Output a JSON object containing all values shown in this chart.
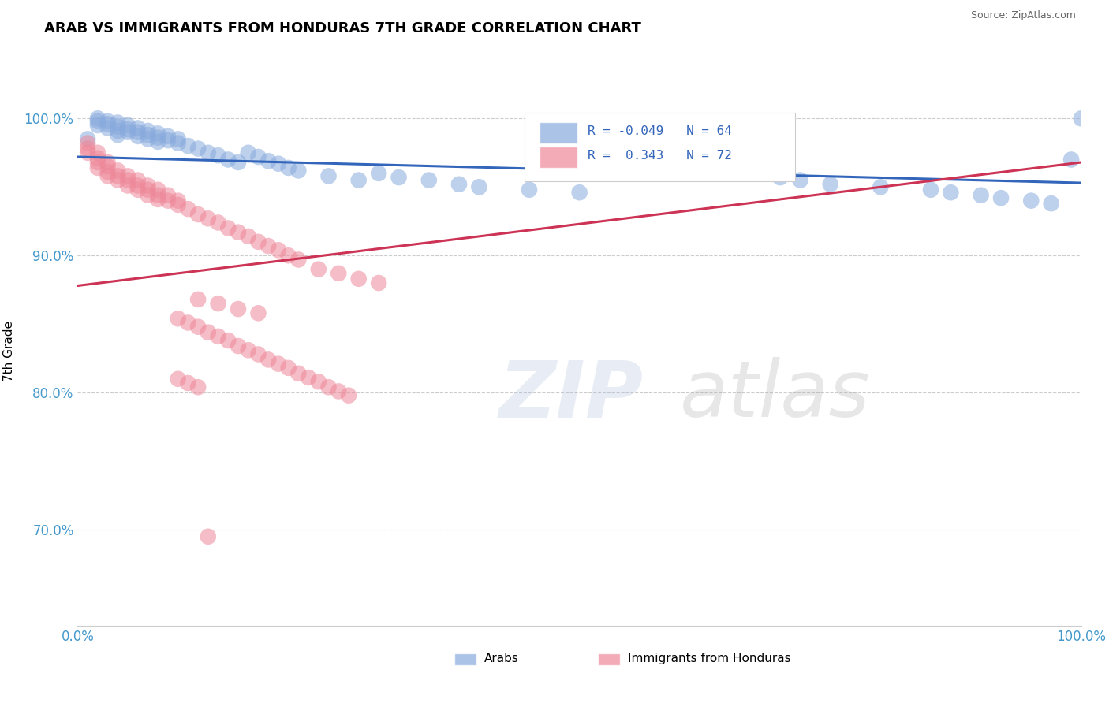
{
  "title": "ARAB VS IMMIGRANTS FROM HONDURAS 7TH GRADE CORRELATION CHART",
  "source": "Source: ZipAtlas.com",
  "ylabel": "7th Grade",
  "xlim": [
    0.0,
    1.0
  ],
  "ylim": [
    0.63,
    1.03
  ],
  "yticks": [
    0.7,
    0.8,
    0.9,
    1.0
  ],
  "ytick_labels": [
    "70.0%",
    "80.0%",
    "90.0%",
    "100.0%"
  ],
  "xticks": [
    0.0,
    0.25,
    0.5,
    0.75,
    1.0
  ],
  "xtick_labels": [
    "0.0%",
    "",
    "",
    "",
    "100.0%"
  ],
  "legend_R_blue": "-0.049",
  "legend_N_blue": "64",
  "legend_R_pink": "0.343",
  "legend_N_pink": "72",
  "blue_color": "#88AADD",
  "pink_color": "#EE8899",
  "line_blue_color": "#3366BB",
  "line_pink_color": "#CC3355",
  "blue_line_start_y": 0.972,
  "blue_line_end_y": 0.953,
  "pink_line_start_y": 0.878,
  "pink_line_end_y": 0.968,
  "blue_scatter_x": [
    0.01,
    0.02,
    0.02,
    0.02,
    0.03,
    0.03,
    0.03,
    0.04,
    0.04,
    0.04,
    0.04,
    0.05,
    0.05,
    0.05,
    0.06,
    0.06,
    0.06,
    0.07,
    0.07,
    0.07,
    0.08,
    0.08,
    0.08,
    0.09,
    0.09,
    0.1,
    0.1,
    0.11,
    0.12,
    0.13,
    0.14,
    0.15,
    0.16,
    0.17,
    0.18,
    0.19,
    0.2,
    0.21,
    0.22,
    0.25,
    0.28,
    0.3,
    0.32,
    0.35,
    0.38,
    0.4,
    0.45,
    0.5,
    0.55,
    0.6,
    0.65,
    0.67,
    0.7,
    0.72,
    0.75,
    0.8,
    0.85,
    0.87,
    0.9,
    0.92,
    0.95,
    0.97,
    0.99,
    1.0
  ],
  "blue_scatter_y": [
    0.985,
    1.0,
    0.998,
    0.995,
    0.998,
    0.996,
    0.993,
    0.997,
    0.994,
    0.991,
    0.988,
    0.995,
    0.992,
    0.99,
    0.993,
    0.99,
    0.987,
    0.991,
    0.988,
    0.985,
    0.989,
    0.986,
    0.983,
    0.987,
    0.984,
    0.985,
    0.982,
    0.98,
    0.978,
    0.975,
    0.973,
    0.97,
    0.968,
    0.975,
    0.972,
    0.969,
    0.967,
    0.964,
    0.962,
    0.958,
    0.955,
    0.96,
    0.957,
    0.955,
    0.952,
    0.95,
    0.948,
    0.946,
    0.97,
    0.965,
    0.962,
    0.96,
    0.957,
    0.955,
    0.952,
    0.95,
    0.948,
    0.946,
    0.944,
    0.942,
    0.94,
    0.938,
    0.97,
    1.0
  ],
  "pink_scatter_x": [
    0.01,
    0.01,
    0.01,
    0.02,
    0.02,
    0.02,
    0.02,
    0.03,
    0.03,
    0.03,
    0.03,
    0.04,
    0.04,
    0.04,
    0.05,
    0.05,
    0.05,
    0.06,
    0.06,
    0.06,
    0.07,
    0.07,
    0.07,
    0.08,
    0.08,
    0.08,
    0.09,
    0.09,
    0.1,
    0.1,
    0.11,
    0.12,
    0.13,
    0.14,
    0.15,
    0.16,
    0.17,
    0.18,
    0.19,
    0.2,
    0.21,
    0.22,
    0.24,
    0.26,
    0.28,
    0.3,
    0.12,
    0.14,
    0.16,
    0.18,
    0.1,
    0.11,
    0.12,
    0.13,
    0.14,
    0.15,
    0.16,
    0.17,
    0.18,
    0.19,
    0.2,
    0.21,
    0.22,
    0.23,
    0.24,
    0.25,
    0.26,
    0.27,
    0.1,
    0.11,
    0.12,
    0.13
  ],
  "pink_scatter_y": [
    0.982,
    0.978,
    0.975,
    0.975,
    0.971,
    0.968,
    0.964,
    0.968,
    0.965,
    0.961,
    0.958,
    0.962,
    0.958,
    0.955,
    0.958,
    0.955,
    0.951,
    0.955,
    0.951,
    0.948,
    0.951,
    0.948,
    0.944,
    0.948,
    0.944,
    0.941,
    0.944,
    0.94,
    0.94,
    0.937,
    0.934,
    0.93,
    0.927,
    0.924,
    0.92,
    0.917,
    0.914,
    0.91,
    0.907,
    0.904,
    0.9,
    0.897,
    0.89,
    0.887,
    0.883,
    0.88,
    0.868,
    0.865,
    0.861,
    0.858,
    0.854,
    0.851,
    0.848,
    0.844,
    0.841,
    0.838,
    0.834,
    0.831,
    0.828,
    0.824,
    0.821,
    0.818,
    0.814,
    0.811,
    0.808,
    0.804,
    0.801,
    0.798,
    0.81,
    0.807,
    0.804,
    0.695
  ]
}
